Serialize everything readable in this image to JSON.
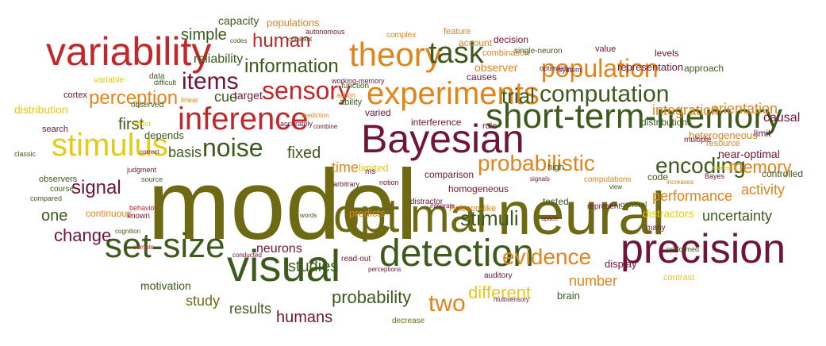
{
  "palette": {
    "red": "#c0282a",
    "orange": "#e0841c",
    "olive": "#6e6a14",
    "green": "#3d5a1c",
    "maroon": "#6e1538",
    "yellow": "#e3cb1a"
  },
  "words": [
    "model",
    "neural",
    "precision",
    "optimal",
    "visual",
    "Bayesian",
    "variability",
    "detection",
    "short-term-memory",
    "set-size",
    "stimulus",
    "inference",
    "experiments",
    "theory",
    "sensory",
    "task",
    "population",
    "noise",
    "computation",
    "probabilistic",
    "evidence",
    "encoding",
    "items",
    "perception",
    "information",
    "human",
    "stimuli",
    "two",
    "signal",
    "different",
    "memory",
    "probability",
    "studies",
    "humans",
    "trial",
    "integration",
    "orientation",
    "performance",
    "activity",
    "uncertainty",
    "change",
    "number",
    "neurons",
    "results",
    "study",
    "first",
    "basis",
    "fixed",
    "time",
    "one",
    "simple",
    "capacity",
    "reliability",
    "cue",
    "target",
    "observer",
    "decision",
    "account",
    "combination",
    "representation",
    "approach",
    "levels",
    "value",
    "distribution",
    "variable",
    "data",
    "cortex",
    "search",
    "depends",
    "causal",
    "limit",
    "heterogeneous",
    "distributions",
    "resource",
    "multiple",
    "near-optimal",
    "controlled",
    "code",
    "comparison",
    "interference",
    "rule",
    "varied",
    "limited",
    "homogeneous",
    "distractor",
    "predicts",
    "Poisson-like",
    "computations",
    "distractors",
    "many",
    "brain",
    "contrast",
    "display",
    "motivation",
    "decrease",
    "auditory",
    "read-out",
    "observers",
    "course",
    "continuous",
    "known",
    "behavior",
    "source",
    "classic",
    "populations",
    "feature",
    "complex",
    "autonomous",
    "codes",
    "constant",
    "single-neuron",
    "optimality",
    "working-memory",
    "function",
    "causes",
    "system",
    "observed",
    "difficult",
    "ability",
    "accurately",
    "prediction",
    "arbitrary",
    "judgment",
    "high",
    "signals",
    "tested",
    "represent",
    "general",
    "view",
    "increases",
    "Bayes",
    "students",
    "multisensory",
    "perceptions",
    "conducted",
    "words",
    "cognition",
    "sample",
    "performed",
    "integrate",
    "space",
    "notion",
    "ms",
    "effect",
    "correct",
    "combine",
    "compared",
    "action",
    "linear"
  ]
}
